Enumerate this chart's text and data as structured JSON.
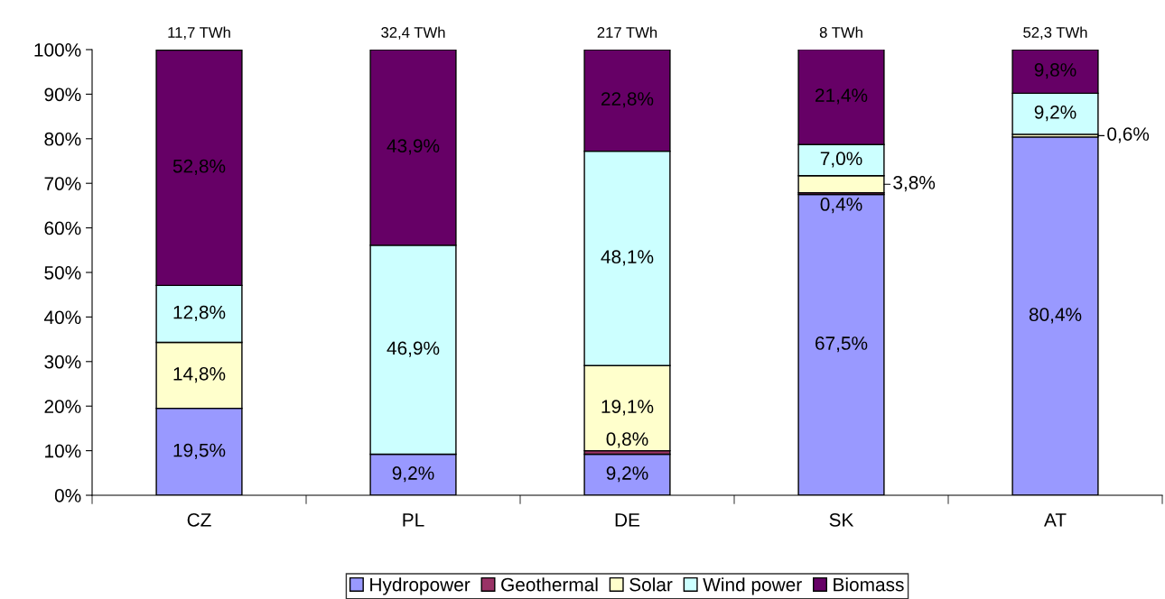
{
  "chart_data": {
    "type": "bar",
    "stacked": true,
    "categories": [
      "CZ",
      "PL",
      "DE",
      "SK",
      "AT"
    ],
    "series": [
      {
        "name": "Hydropower",
        "color": "#9999ff",
        "values": [
          19.5,
          9.2,
          9.2,
          67.5,
          80.4
        ],
        "value_labels": [
          "19,5%",
          "9,2%",
          "9,2%",
          "67,5%",
          "80,4%"
        ]
      },
      {
        "name": "Geothermal",
        "color": "#993366",
        "values": [
          null,
          null,
          0.8,
          0.4,
          null
        ],
        "value_labels": [
          null,
          null,
          "0,8%",
          "0,4%",
          null
        ]
      },
      {
        "name": "Solar",
        "color": "#ffffcc",
        "values": [
          14.8,
          null,
          19.1,
          3.8,
          0.6
        ],
        "value_labels": [
          "14,8%",
          null,
          "19,1%",
          "3,8%",
          "0,6%"
        ]
      },
      {
        "name": "Wind power",
        "color": "#ccffff",
        "values": [
          12.8,
          46.9,
          48.1,
          7.0,
          9.2
        ],
        "value_labels": [
          "12,8%",
          "46,9%",
          "48,1%",
          "7,0%",
          "9,2%"
        ]
      },
      {
        "name": "Biomass",
        "color": "#660066",
        "values": [
          52.8,
          43.9,
          22.8,
          21.4,
          9.8
        ],
        "value_labels": [
          "52,8%",
          "43,9%",
          "22,8%",
          "21,4%",
          "9,8%"
        ]
      }
    ],
    "annotations": [
      "11,7 TWh",
      "32,4 TWh",
      "217 TWh",
      "8 TWh",
      "52,3 TWh"
    ],
    "ylim": [
      0,
      100
    ],
    "yticks": [
      {
        "value": 0,
        "label": "0%"
      },
      {
        "value": 10,
        "label": "10%"
      },
      {
        "value": 20,
        "label": "20%"
      },
      {
        "value": 30,
        "label": "30%"
      },
      {
        "value": 40,
        "label": "40%"
      },
      {
        "value": 50,
        "label": "50%"
      },
      {
        "value": 60,
        "label": "60%"
      },
      {
        "value": 70,
        "label": "70%"
      },
      {
        "value": 80,
        "label": "80%"
      },
      {
        "value": 90,
        "label": "90%"
      },
      {
        "value": 100,
        "label": "100%"
      }
    ],
    "grid": false,
    "legend": "bottom"
  }
}
